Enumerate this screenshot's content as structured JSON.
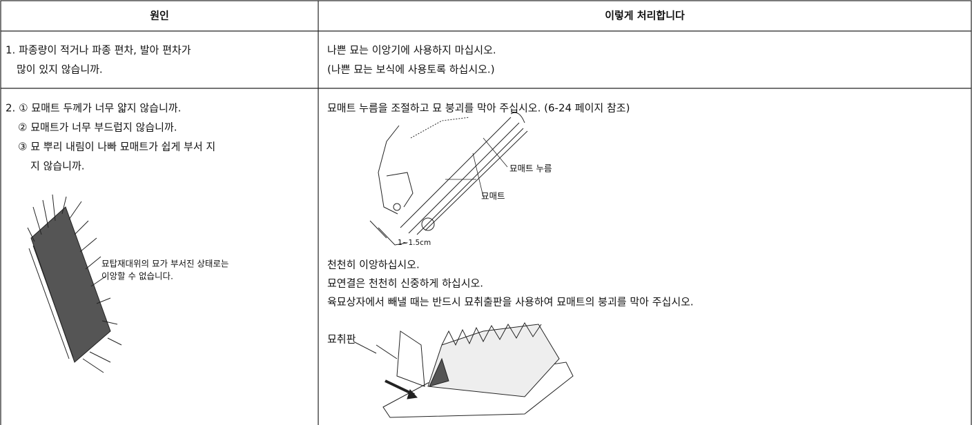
{
  "table": {
    "header": [
      "원인",
      "이렇게 처리합니다"
    ],
    "rows": [
      {
        "cause": [
          "1. 파종량이 적거나 파종 편차, 발아 편차가",
          "많이 있지 않습니까."
        ],
        "remedy": [
          "나쁜 묘는 이앙기에 사용하지 마십시오.",
          "(나쁜 묘는 보식에 사용토록 하십시오.)"
        ]
      },
      {
        "cause": [
          "2. ① 묘매트 두께가 너무 얇지 않습니까.",
          "② 묘매트가 너무 부드럽지 않습니까.",
          "③ 묘 뿌리 내림이 나빠 묘매트가 쉽게 부서 지",
          "지 않습니까."
        ],
        "cause_figure_caption": [
          "묘탑재대위의 묘가 부서진 상태로는",
          "이앙할 수 없습니다."
        ],
        "remedy_intro": "묘매트 누름을 조절하고 묘 붕괴를 막아 주십시오. (6-24 페이지 참조)",
        "figure_labels": [
          "묘매트 누름",
          "묘매트",
          "1~1.5cm"
        ],
        "remedy": [
          "천천히 이앙하십시오.",
          "묘연결은 천천히 신중하게 하십시오.",
          "육묘상자에서 빼낼 때는 반드시 묘취출판을 사용하여 묘매트의 붕괴를 막아 주십시오."
        ],
        "tray_label": "묘취판"
      }
    ]
  }
}
